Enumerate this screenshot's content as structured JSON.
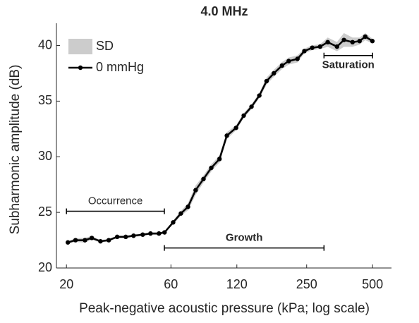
{
  "chart_data": {
    "type": "line",
    "title": "4.0 MHz",
    "xlabel": "Peak-negative acoustic pressure (kPa; log scale)",
    "ylabel": "Subharmonic amplitude (dB)",
    "xscale": "log",
    "x": [
      20.3,
      22.0,
      24.3,
      26.1,
      28.6,
      31.2,
      34.1,
      37.3,
      40.5,
      44.6,
      48.4,
      52.9,
      56.1,
      61.4,
      66.6,
      71.8,
      77.8,
      84.5,
      91.7,
      100,
      108,
      119,
      129,
      140,
      152,
      164,
      177,
      193,
      207,
      227,
      244,
      265,
      288,
      312,
      344,
      370,
      405,
      436,
      463,
      499
    ],
    "series": [
      {
        "name": "SD",
        "color": "#cccccc",
        "values": [
          0.1,
          0.15,
          0.2,
          0.15,
          0.1,
          0.1,
          0.1,
          0.1,
          0.1,
          0.1,
          0.1,
          0.1,
          0.1,
          0.15,
          0.2,
          0.3,
          0.4,
          0.3,
          0.3,
          0.3,
          0.3,
          0.2,
          0.2,
          0.2,
          0.2,
          0.3,
          0.3,
          0.3,
          0.3,
          0.3,
          0.2,
          0.2,
          0.2,
          0.4,
          0.4,
          0.6,
          0.4,
          0.3,
          0.3,
          0.2
        ]
      },
      {
        "name": "0 mmHg",
        "color": "#000000",
        "values": [
          22.3,
          22.5,
          22.5,
          22.7,
          22.4,
          22.5,
          22.8,
          22.8,
          22.9,
          23.0,
          23.1,
          23.1,
          23.2,
          24.1,
          24.9,
          25.5,
          27.0,
          28.0,
          29.0,
          29.8,
          31.9,
          32.6,
          33.7,
          34.5,
          35.5,
          36.8,
          37.5,
          38.2,
          38.6,
          38.8,
          39.5,
          39.8,
          39.9,
          40.3,
          39.9,
          40.5,
          40.3,
          40.4,
          40.8,
          40.4
        ]
      }
    ],
    "xlim": [
      18,
      610
    ],
    "ylim": [
      20,
      42
    ],
    "xticks": [
      20,
      60,
      120,
      250,
      500
    ],
    "yticks": [
      20,
      25,
      30,
      35,
      40
    ],
    "legend": "upper left",
    "annotations": [
      {
        "text": "Occurrence",
        "x": [
          20,
          56
        ],
        "y": 25.1,
        "side": "above"
      },
      {
        "text": "Growth",
        "x": [
          56,
          300
        ],
        "y": 21.8,
        "side": "above"
      },
      {
        "text": "Saturation",
        "x": [
          300,
          500
        ],
        "y": 39.1,
        "side": "below"
      }
    ]
  }
}
